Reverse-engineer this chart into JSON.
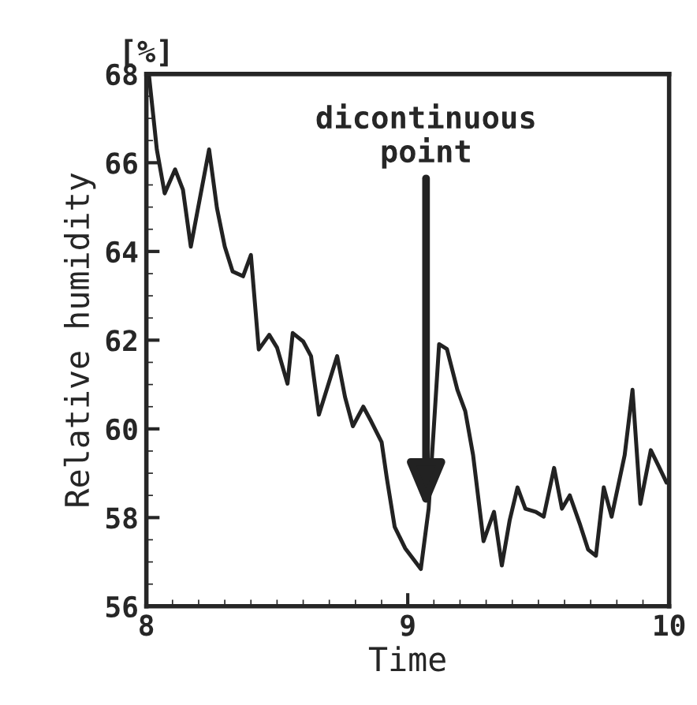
{
  "chart_data": {
    "type": "line",
    "xlabel": "Time",
    "ylabel": "Relative humidity",
    "annotations": [
      "[%]",
      {
        "text": "dicontinuous\npoint",
        "x": 9.07,
        "y": 58.2
      }
    ],
    "x": [
      8.01,
      8.04,
      8.07,
      8.11,
      8.14,
      8.17,
      8.24,
      8.27,
      8.3,
      8.33,
      8.37,
      8.4,
      8.43,
      8.47,
      8.5,
      8.54,
      8.56,
      8.6,
      8.63,
      8.66,
      8.73,
      8.76,
      8.79,
      8.83,
      8.86,
      8.9,
      8.92,
      8.95,
      8.99,
      9.05,
      9.08,
      9.12,
      9.15,
      9.19,
      9.22,
      9.25,
      9.29,
      9.33,
      9.36,
      9.39,
      9.42,
      9.45,
      9.49,
      9.52,
      9.56,
      9.59,
      9.62,
      9.66,
      9.69,
      9.72,
      9.75,
      9.78,
      9.83,
      9.86,
      9.89,
      9.93,
      9.96,
      9.99
    ],
    "series": [
      {
        "color": "#222222",
        "values": [
          67.97,
          66.3,
          65.31,
          65.85,
          65.39,
          64.11,
          66.3,
          64.98,
          64.11,
          63.55,
          63.44,
          63.92,
          61.79,
          62.12,
          61.83,
          61.02,
          62.16,
          61.97,
          61.64,
          60.32,
          61.64,
          60.72,
          60.06,
          60.5,
          60.17,
          59.7,
          58.89,
          57.79,
          57.31,
          56.84,
          58.2,
          61.91,
          61.8,
          60.88,
          60.4,
          59.41,
          57.47,
          58.13,
          56.92,
          57.94,
          58.68,
          58.2,
          58.13,
          58.02,
          59.12,
          58.2,
          58.5,
          57.83,
          57.28,
          57.14,
          58.68,
          58.02,
          59.41,
          60.88,
          58.31,
          59.52,
          59.16,
          58.79
        ]
      }
    ],
    "xlim": [
      8,
      10
    ],
    "xticks": [
      8,
      9,
      10
    ],
    "ylim": [
      56,
      68
    ],
    "yticks": [
      56,
      58,
      60,
      62,
      64,
      66,
      68
    ],
    "grid": false,
    "legend": false,
    "marker": "none",
    "line_style": "solid"
  }
}
